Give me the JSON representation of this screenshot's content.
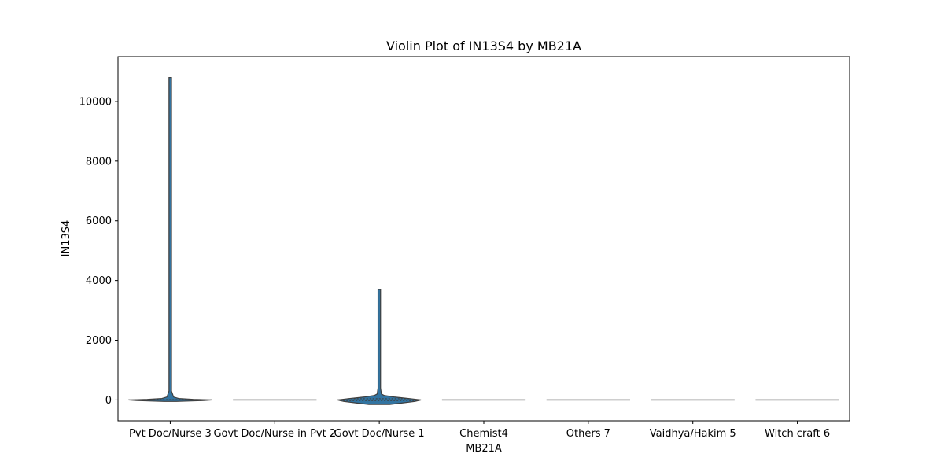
{
  "chart_data": {
    "type": "violin",
    "title": "Violin Plot of IN13S4 by MB21A",
    "xlabel": "MB21A",
    "ylabel": "IN13S4",
    "ylim": [
      -700,
      11500
    ],
    "yticks": [
      0,
      2000,
      4000,
      6000,
      8000,
      10000
    ],
    "grid": false,
    "categories": [
      "Pvt Doc/Nurse 3",
      "Govt Doc/Nurse in Pvt 2",
      "Govt Doc/Nurse 1",
      "Chemist4",
      "Others 7",
      "Vaidhya/Hakim 5",
      "Witch craft 6"
    ],
    "violins": [
      {
        "category": "Pvt Doc/Nurse 3",
        "min": -50,
        "max": 10800,
        "median": 0,
        "q1": 0,
        "q3": 10,
        "peak_half_width": 0.4,
        "profile": [
          [
            -50,
            0.15
          ],
          [
            -20,
            0.8
          ],
          [
            0,
            1.0
          ],
          [
            20,
            0.55
          ],
          [
            50,
            0.2
          ],
          [
            100,
            0.08
          ],
          [
            300,
            0.03
          ],
          [
            10800,
            0.03
          ]
        ]
      },
      {
        "category": "Govt Doc/Nurse in Pvt 2",
        "min": 0,
        "max": 0,
        "median": 0,
        "q1": 0,
        "q3": 0,
        "peak_half_width": 0.4,
        "profile": []
      },
      {
        "category": "Govt Doc/Nurse 1",
        "min": -150,
        "max": 3700,
        "median": 0,
        "q1": -20,
        "q3": 40,
        "peak_half_width": 0.4,
        "profile": [
          [
            -150,
            0.25
          ],
          [
            -100,
            0.55
          ],
          [
            -50,
            0.85
          ],
          [
            0,
            1.0
          ],
          [
            50,
            0.7
          ],
          [
            100,
            0.35
          ],
          [
            150,
            0.12
          ],
          [
            200,
            0.05
          ],
          [
            400,
            0.03
          ],
          [
            3700,
            0.03
          ]
        ]
      },
      {
        "category": "Chemist4",
        "min": 0,
        "max": 0,
        "median": 0,
        "q1": 0,
        "q3": 0,
        "peak_half_width": 0.4,
        "profile": []
      },
      {
        "category": "Others 7",
        "min": 0,
        "max": 0,
        "median": 0,
        "q1": 0,
        "q3": 0,
        "peak_half_width": 0.4,
        "profile": []
      },
      {
        "category": "Vaidhya/Hakim 5",
        "min": 0,
        "max": 0,
        "median": 0,
        "q1": 0,
        "q3": 0,
        "peak_half_width": 0.4,
        "profile": []
      },
      {
        "category": "Witch craft 6",
        "min": 0,
        "max": 0,
        "median": 0,
        "q1": 0,
        "q3": 0,
        "peak_half_width": 0.4,
        "profile": []
      }
    ],
    "colors": {
      "fill": "#3274a1",
      "edge": "#3f3f3f",
      "axis": "#000000"
    }
  }
}
